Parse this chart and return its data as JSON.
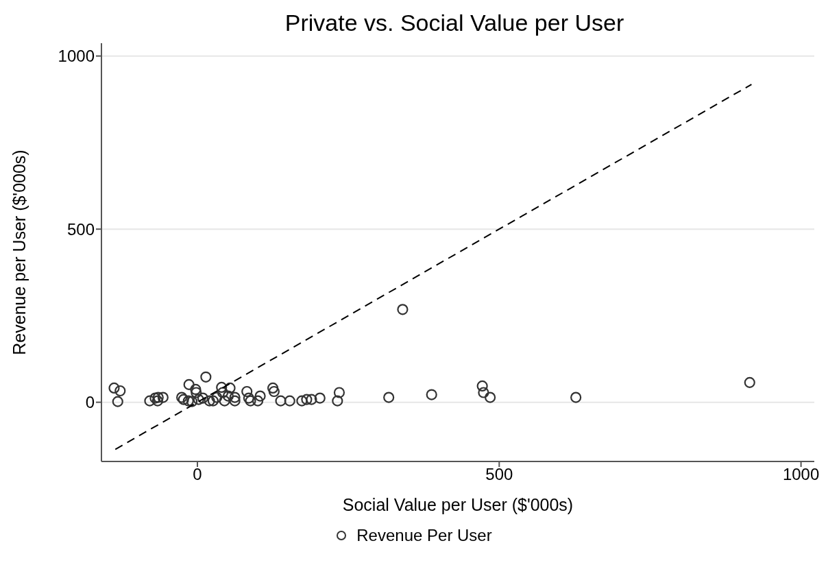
{
  "chart_data": {
    "type": "scatter",
    "title": "Private vs. Social Value per User",
    "xlabel": "Social Value per User ($'000s)",
    "ylabel": "Revenue per User ($'000s)",
    "xlim": [
      -159,
      1022
    ],
    "ylim": [
      -171,
      1037
    ],
    "xticks": [
      0,
      500,
      1000
    ],
    "yticks": [
      0,
      500,
      1000
    ],
    "grid": "y",
    "legend": "bottom",
    "series": [
      {
        "name": "Revenue Per User",
        "color": "#333333",
        "marker": "circle",
        "x": [
          -138,
          -128,
          -132,
          -79,
          -70,
          -65,
          -57,
          -66,
          -26,
          -23,
          -14,
          -3,
          -2,
          14,
          -15,
          -9,
          2,
          9,
          20,
          26,
          32,
          40,
          42,
          54,
          51,
          45,
          62,
          62,
          82,
          85,
          88,
          104,
          100,
          125,
          127,
          138,
          153,
          173,
          181,
          189,
          203,
          235,
          232,
          317,
          340,
          388,
          472,
          474,
          485,
          627,
          915
        ],
        "values": [
          41,
          33,
          2,
          4,
          12,
          14,
          14,
          4,
          14,
          8,
          51,
          37,
          28,
          73,
          4,
          2,
          8,
          12,
          4,
          4,
          14,
          43,
          28,
          41,
          18,
          4,
          14,
          4,
          31,
          12,
          4,
          18,
          4,
          41,
          31,
          4,
          4,
          4,
          8,
          8,
          12,
          28,
          4,
          14,
          268,
          22,
          47,
          28,
          14,
          14,
          57
        ]
      },
      {
        "type": "line",
        "color": "#000000",
        "line_style": "dashed",
        "marker": "none",
        "x": [
          -136,
          918
        ],
        "values": [
          -136,
          918
        ]
      }
    ]
  }
}
